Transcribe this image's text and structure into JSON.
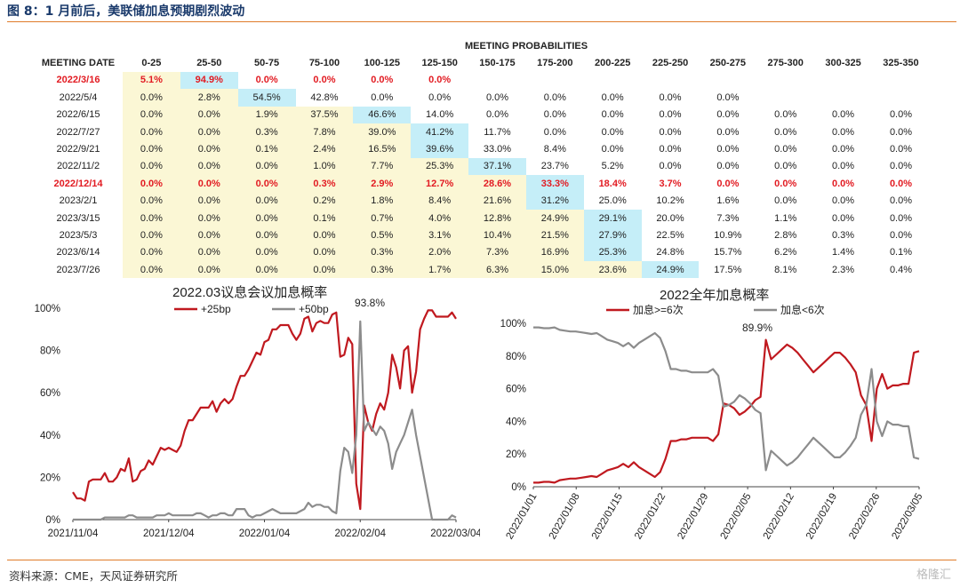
{
  "figure_title": "图 8：1 月前后，美联储加息预期剧烈波动",
  "source": "资料来源：CME，天风证券研究所",
  "watermark": "格隆汇",
  "colors": {
    "red": "#c0191f",
    "gray": "#8c8c8c",
    "yellow": "#fbf7d5",
    "cyan": "#c5eef8",
    "accent": "#e07b2a"
  },
  "table": {
    "caption": "MEETING PROBABILITIES",
    "date_header": "MEETING DATE",
    "columns": [
      "0-25",
      "25-50",
      "50-75",
      "75-100",
      "100-125",
      "125-150",
      "150-175",
      "175-200",
      "200-225",
      "225-250",
      "250-275",
      "275-300",
      "300-325",
      "325-350"
    ],
    "rows": [
      {
        "date": "2022/3/16",
        "red": true,
        "values": [
          "5.1%",
          "94.9%",
          "0.0%",
          "0.0%",
          "0.0%",
          "0.0%",
          "",
          "",
          "",
          "",
          "",
          "",
          "",
          ""
        ],
        "cyan": 1
      },
      {
        "date": "2022/5/4",
        "red": false,
        "values": [
          "0.0%",
          "2.8%",
          "54.5%",
          "42.8%",
          "0.0%",
          "0.0%",
          "0.0%",
          "0.0%",
          "0.0%",
          "0.0%",
          "0.0%",
          "",
          "",
          ""
        ],
        "cyan": 2
      },
      {
        "date": "2022/6/15",
        "red": false,
        "values": [
          "0.0%",
          "0.0%",
          "1.9%",
          "37.5%",
          "46.6%",
          "14.0%",
          "0.0%",
          "0.0%",
          "0.0%",
          "0.0%",
          "0.0%",
          "0.0%",
          "0.0%",
          "0.0%"
        ],
        "cyan": 4
      },
      {
        "date": "2022/7/27",
        "red": false,
        "values": [
          "0.0%",
          "0.0%",
          "0.3%",
          "7.8%",
          "39.0%",
          "41.2%",
          "11.7%",
          "0.0%",
          "0.0%",
          "0.0%",
          "0.0%",
          "0.0%",
          "0.0%",
          "0.0%"
        ],
        "cyan": 5
      },
      {
        "date": "2022/9/21",
        "red": false,
        "values": [
          "0.0%",
          "0.0%",
          "0.1%",
          "2.4%",
          "16.5%",
          "39.6%",
          "33.0%",
          "8.4%",
          "0.0%",
          "0.0%",
          "0.0%",
          "0.0%",
          "0.0%",
          "0.0%"
        ],
        "cyan": 5
      },
      {
        "date": "2022/11/2",
        "red": false,
        "values": [
          "0.0%",
          "0.0%",
          "0.0%",
          "1.0%",
          "7.7%",
          "25.3%",
          "37.1%",
          "23.7%",
          "5.2%",
          "0.0%",
          "0.0%",
          "0.0%",
          "0.0%",
          "0.0%"
        ],
        "cyan": 6
      },
      {
        "date": "2022/12/14",
        "red": true,
        "values": [
          "0.0%",
          "0.0%",
          "0.0%",
          "0.3%",
          "2.9%",
          "12.7%",
          "28.6%",
          "33.3%",
          "18.4%",
          "3.7%",
          "0.0%",
          "0.0%",
          "0.0%",
          "0.0%"
        ],
        "cyan": 7
      },
      {
        "date": "2023/2/1",
        "red": false,
        "values": [
          "0.0%",
          "0.0%",
          "0.0%",
          "0.2%",
          "1.8%",
          "8.4%",
          "21.6%",
          "31.2%",
          "25.0%",
          "10.2%",
          "1.6%",
          "0.0%",
          "0.0%",
          "0.0%"
        ],
        "cyan": 7
      },
      {
        "date": "2023/3/15",
        "red": false,
        "values": [
          "0.0%",
          "0.0%",
          "0.0%",
          "0.1%",
          "0.7%",
          "4.0%",
          "12.8%",
          "24.9%",
          "29.1%",
          "20.0%",
          "7.3%",
          "1.1%",
          "0.0%",
          "0.0%"
        ],
        "cyan": 8
      },
      {
        "date": "2023/5/3",
        "red": false,
        "values": [
          "0.0%",
          "0.0%",
          "0.0%",
          "0.0%",
          "0.5%",
          "3.1%",
          "10.4%",
          "21.5%",
          "27.9%",
          "22.5%",
          "10.9%",
          "2.8%",
          "0.3%",
          "0.0%"
        ],
        "cyan": 8
      },
      {
        "date": "2023/6/14",
        "red": false,
        "values": [
          "0.0%",
          "0.0%",
          "0.0%",
          "0.0%",
          "0.3%",
          "2.0%",
          "7.3%",
          "16.9%",
          "25.3%",
          "24.8%",
          "15.7%",
          "6.2%",
          "1.4%",
          "0.1%"
        ],
        "cyan": 8
      },
      {
        "date": "2023/7/26",
        "red": false,
        "values": [
          "0.0%",
          "0.0%",
          "0.0%",
          "0.0%",
          "0.3%",
          "1.7%",
          "6.3%",
          "15.0%",
          "23.6%",
          "24.9%",
          "17.5%",
          "8.1%",
          "2.3%",
          "0.4%"
        ],
        "cyan": 9
      }
    ]
  },
  "chart_data": [
    {
      "type": "line",
      "title": "2022.03议息会议加息概率",
      "yticks": [
        "0%",
        "20%",
        "40%",
        "60%",
        "80%",
        "100%"
      ],
      "ylim": [
        0,
        100
      ],
      "xticks": [
        "2021/11/04",
        "2021/12/04",
        "2022/01/04",
        "2022/02/04",
        "2022/03/04"
      ],
      "annotation": "93.8%",
      "series": [
        {
          "name": "+25bp",
          "color": "#c0191f",
          "values": [
            13,
            10,
            10,
            9,
            18,
            19,
            19,
            19,
            22,
            18,
            18,
            20,
            24,
            23,
            29,
            18,
            19,
            23,
            24,
            28,
            26,
            30,
            34,
            33,
            34,
            33,
            32,
            35,
            42,
            47,
            47,
            50,
            53,
            53,
            53,
            56,
            51,
            55,
            57,
            55,
            57,
            63,
            68,
            68,
            71,
            75,
            79,
            78,
            84,
            85,
            90,
            90,
            92,
            92,
            92,
            88,
            85,
            88,
            95,
            96,
            89,
            93,
            94,
            93,
            93,
            97,
            98,
            77,
            78,
            86,
            83,
            17,
            5,
            54,
            46,
            42,
            50,
            55,
            52,
            60,
            78,
            72,
            62,
            80,
            82,
            60,
            70,
            90,
            95,
            99,
            99,
            96,
            96,
            96,
            96,
            98,
            95
          ]
        },
        {
          "name": "+50bp",
          "color": "#8c8c8c",
          "values": [
            0,
            0,
            0,
            0,
            0,
            0,
            0,
            0,
            1,
            1,
            1,
            1,
            1,
            1,
            2,
            2,
            1,
            1,
            1,
            1,
            1,
            2,
            2,
            2,
            3,
            2,
            2,
            2,
            2,
            2,
            2,
            3,
            3,
            2,
            1,
            2,
            2,
            3,
            3,
            2,
            2,
            5,
            5,
            5,
            2,
            1,
            2,
            2,
            3,
            4,
            5,
            4,
            3,
            3,
            3,
            3,
            3,
            4,
            5,
            8,
            6,
            7,
            7,
            6,
            6,
            4,
            3,
            23,
            34,
            32,
            22,
            40,
            93.8,
            42,
            46,
            43,
            40,
            44,
            42,
            36,
            24,
            32,
            36,
            40,
            46,
            52,
            40,
            30,
            20,
            10,
            0,
            0,
            0,
            0,
            0,
            2,
            1
          ]
        }
      ]
    },
    {
      "type": "line",
      "title": "2022全年加息概率",
      "yticks": [
        "0%",
        "20%",
        "40%",
        "60%",
        "80%",
        "100%"
      ],
      "ylim": [
        0,
        100
      ],
      "xticks": [
        "2022/01/01",
        "2022/01/08",
        "2022/01/15",
        "2022/01/22",
        "2022/01/29",
        "2022/02/05",
        "2022/02/12",
        "2022/02/19",
        "2022/02/26",
        "2022/03/05"
      ],
      "annotation": "89.9%",
      "series": [
        {
          "name": "加息>=6次",
          "color": "#c0191f",
          "values": [
            2.5,
            2.5,
            3,
            3,
            2.5,
            4,
            4.5,
            5,
            5,
            5.5,
            6,
            6.5,
            6,
            8,
            10,
            11,
            12,
            14,
            12,
            15,
            12,
            10,
            8,
            6,
            9,
            17,
            28,
            28,
            29,
            29,
            30,
            30,
            30,
            30,
            28,
            32,
            51,
            50,
            48,
            44,
            46,
            49,
            53,
            55,
            89.9,
            78,
            81,
            84,
            87,
            85,
            82,
            78,
            74,
            70,
            73,
            76,
            79,
            82,
            82,
            79,
            75,
            70,
            56,
            50,
            28,
            60,
            69,
            60,
            62,
            62,
            63,
            63,
            82,
            83
          ]
        },
        {
          "name": "加息<6次",
          "color": "#8c8c8c",
          "values": [
            97.5,
            97.5,
            97,
            97,
            97.5,
            96,
            95.5,
            95,
            95,
            94.5,
            94,
            93.5,
            94,
            92,
            90,
            89,
            88,
            86,
            88,
            85,
            88,
            90,
            92,
            94,
            91,
            83,
            72,
            72,
            71,
            71,
            70,
            70,
            70,
            70,
            72,
            68,
            49,
            50,
            52,
            56,
            54,
            51,
            47,
            45,
            10.1,
            22,
            19,
            16,
            13,
            15,
            18,
            22,
            26,
            30,
            27,
            24,
            21,
            18,
            18,
            21,
            25,
            30,
            44,
            50,
            72,
            40,
            31,
            40,
            38,
            38,
            37,
            37,
            18,
            17
          ]
        }
      ]
    }
  ]
}
